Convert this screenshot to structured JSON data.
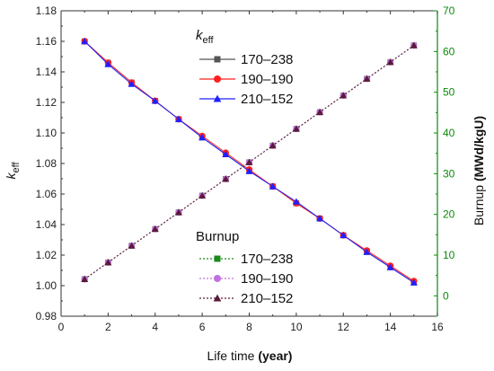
{
  "chart_data": {
    "type": "line",
    "x": [
      1,
      2,
      3,
      4,
      5,
      6,
      7,
      8,
      9,
      10,
      11,
      12,
      13,
      14,
      15
    ],
    "xlabel": "Life time",
    "xlabel_unit": "(year)",
    "xlim": [
      0,
      16
    ],
    "xticks": [
      "0",
      "2",
      "4",
      "6",
      "8",
      "10",
      "12",
      "14",
      "16"
    ],
    "ylabel_left_main": "k",
    "ylabel_left_sub": "eff",
    "ylim_left": [
      0.98,
      1.18
    ],
    "yticks_left": [
      "0.98",
      "1.00",
      "1.02",
      "1.04",
      "1.06",
      "1.08",
      "1.10",
      "1.12",
      "1.14",
      "1.16",
      "1.18"
    ],
    "ylabel_right": "Burnup",
    "ylabel_right_unit": "(MWd/kgU)",
    "ylim_right": [
      -5,
      70
    ],
    "yticks_right": [
      "0",
      "10",
      "20",
      "30",
      "40",
      "50",
      "60",
      "70"
    ],
    "legend_keff_title_main": "k",
    "legend_keff_title_sub": "eff",
    "legend_burnup_title": "Burnup",
    "series": [
      {
        "name": "170–238",
        "group": "keff",
        "axis": "left",
        "color": "#555555",
        "marker": "square",
        "values": [
          1.16,
          1.146,
          1.133,
          1.121,
          1.109,
          1.097,
          1.086,
          1.075,
          1.065,
          1.054,
          1.044,
          1.033,
          1.022,
          1.012,
          1.002
        ]
      },
      {
        "name": "190–190",
        "group": "keff",
        "axis": "left",
        "color": "#ff2020",
        "marker": "circle",
        "values": [
          1.16,
          1.146,
          1.133,
          1.121,
          1.109,
          1.098,
          1.087,
          1.076,
          1.065,
          1.054,
          1.044,
          1.033,
          1.023,
          1.013,
          1.003
        ]
      },
      {
        "name": "210–152",
        "group": "keff",
        "axis": "left",
        "color": "#2020ff",
        "marker": "triangle",
        "values": [
          1.16,
          1.145,
          1.132,
          1.121,
          1.109,
          1.097,
          1.086,
          1.075,
          1.065,
          1.055,
          1.044,
          1.033,
          1.022,
          1.012,
          1.002
        ]
      },
      {
        "name": "170–238",
        "group": "burnup",
        "axis": "right",
        "color": "#1a8a1a",
        "marker": "square",
        "values": [
          4.1,
          8.2,
          12.3,
          16.4,
          20.5,
          24.6,
          28.7,
          32.8,
          36.9,
          41.0,
          45.1,
          49.2,
          53.3,
          57.4,
          61.5
        ]
      },
      {
        "name": "190–190",
        "group": "burnup",
        "axis": "right",
        "color": "#c070e0",
        "marker": "circle",
        "values": [
          4.1,
          8.2,
          12.3,
          16.4,
          20.5,
          24.6,
          28.7,
          32.8,
          36.9,
          41.0,
          45.1,
          49.2,
          53.3,
          57.4,
          61.5
        ]
      },
      {
        "name": "210–152",
        "group": "burnup",
        "axis": "right",
        "color": "#5a1a3a",
        "marker": "triangle",
        "values": [
          4.1,
          8.2,
          12.3,
          16.4,
          20.5,
          24.6,
          28.7,
          32.8,
          36.9,
          41.0,
          45.1,
          49.2,
          53.3,
          57.4,
          61.5
        ]
      }
    ],
    "grid": false,
    "legend_position": "top-center and bottom-center"
  }
}
